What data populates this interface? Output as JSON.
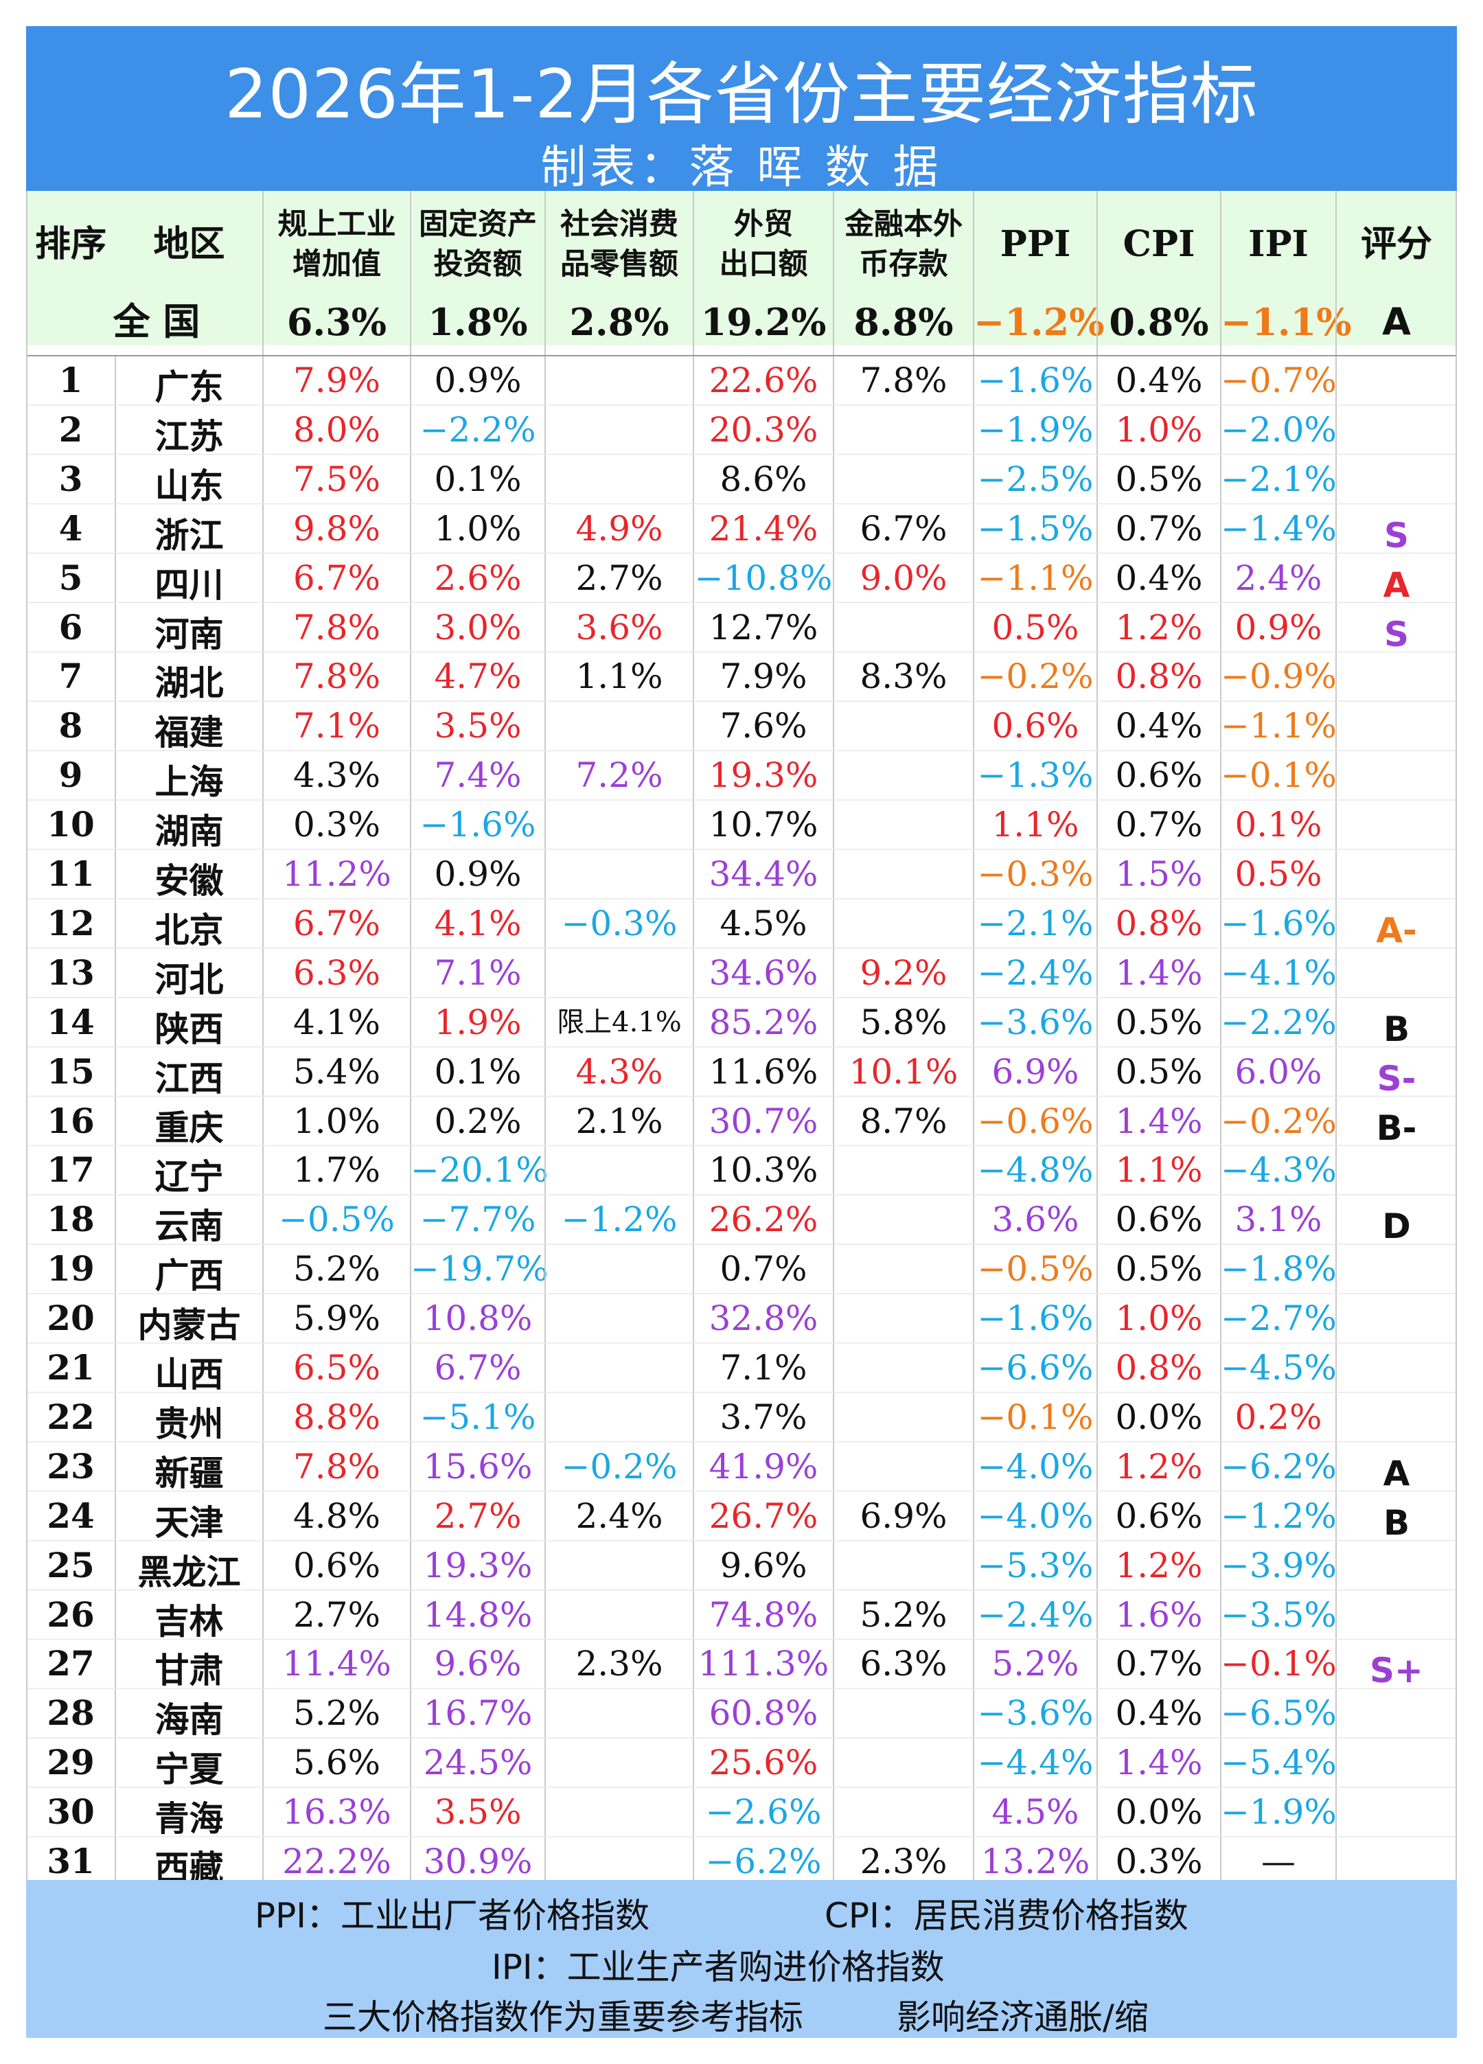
{
  "title": "2026年1-2月各省份主要经济指标",
  "subtitle": "制表：落 晖 数 据",
  "headers": [
    "排序",
    "地区",
    "规上工业\n增加值",
    "固定资产\n投资额",
    "社会消费\n品零售额",
    "外贸\n出口额",
    "金融本外\n币存款",
    "PPI",
    "CPI",
    "IPI",
    "评分"
  ],
  "national": {
    "label": "全 国",
    "values": [
      "6.3%",
      "1.8%",
      "2.8%",
      "19.2%",
      "8.8%",
      "-1.2%",
      "0.8%",
      "-1.1%",
      "A"
    ]
  },
  "colors": {
    "red": "#e8262b",
    "purple": "#9b3fd6",
    "cyan": "#1aa7e4",
    "orange": "#ef7a1a",
    "black": "#111111",
    "header_bg": "#e6fbe3",
    "title_bg": "#3d8fe8",
    "footer_bg": "#a4cdf8"
  },
  "chart_data": {
    "type": "table",
    "columns": [
      "排序",
      "地区",
      "规上工业增加值",
      "固定资产投资额",
      "社会消费品零售额",
      "外贸出口额",
      "金融本外币存款",
      "PPI",
      "CPI",
      "IPI",
      "评分"
    ],
    "rows": [
      [
        "1",
        "广东",
        "7.9%",
        "0.9%",
        "",
        "22.6%",
        "7.8%",
        "-1.6%",
        "0.4%",
        "-0.7%",
        ""
      ],
      [
        "2",
        "江苏",
        "8.0%",
        "-2.2%",
        "",
        "20.3%",
        "",
        "-1.9%",
        "1.0%",
        "-2.0%",
        ""
      ],
      [
        "3",
        "山东",
        "7.5%",
        "0.1%",
        "",
        "8.6%",
        "",
        "-2.5%",
        "0.5%",
        "-2.1%",
        ""
      ],
      [
        "4",
        "浙江",
        "9.8%",
        "1.0%",
        "4.9%",
        "21.4%",
        "6.7%",
        "-1.5%",
        "0.7%",
        "-1.4%",
        "S"
      ],
      [
        "5",
        "四川",
        "6.7%",
        "2.6%",
        "2.7%",
        "-10.8%",
        "9.0%",
        "-1.1%",
        "0.4%",
        "2.4%",
        "A"
      ],
      [
        "6",
        "河南",
        "7.8%",
        "3.0%",
        "3.6%",
        "12.7%",
        "",
        "0.5%",
        "1.2%",
        "0.9%",
        "S"
      ],
      [
        "7",
        "湖北",
        "7.8%",
        "4.7%",
        "1.1%",
        "7.9%",
        "8.3%",
        "-0.2%",
        "0.8%",
        "-0.9%",
        ""
      ],
      [
        "8",
        "福建",
        "7.1%",
        "3.5%",
        "",
        "7.6%",
        "",
        "0.6%",
        "0.4%",
        "-1.1%",
        ""
      ],
      [
        "9",
        "上海",
        "4.3%",
        "7.4%",
        "7.2%",
        "19.3%",
        "",
        "-1.3%",
        "0.6%",
        "-0.1%",
        ""
      ],
      [
        "10",
        "湖南",
        "0.3%",
        "-1.6%",
        "",
        "10.7%",
        "",
        "1.1%",
        "0.7%",
        "0.1%",
        ""
      ],
      [
        "11",
        "安徽",
        "11.2%",
        "0.9%",
        "",
        "34.4%",
        "",
        "-0.3%",
        "1.5%",
        "0.5%",
        ""
      ],
      [
        "12",
        "北京",
        "6.7%",
        "4.1%",
        "-0.3%",
        "4.5%",
        "",
        "-2.1%",
        "0.8%",
        "-1.6%",
        "A-"
      ],
      [
        "13",
        "河北",
        "6.3%",
        "7.1%",
        "",
        "34.6%",
        "9.2%",
        "-2.4%",
        "1.4%",
        "-4.1%",
        ""
      ],
      [
        "14",
        "陕西",
        "4.1%",
        "1.9%",
        "限上4.1%",
        "85.2%",
        "5.8%",
        "-3.6%",
        "0.5%",
        "-2.2%",
        "B"
      ],
      [
        "15",
        "江西",
        "5.4%",
        "0.1%",
        "4.3%",
        "11.6%",
        "10.1%",
        "6.9%",
        "0.5%",
        "6.0%",
        "S-"
      ],
      [
        "16",
        "重庆",
        "1.0%",
        "0.2%",
        "2.1%",
        "30.7%",
        "8.7%",
        "-0.6%",
        "1.4%",
        "-0.2%",
        "B-"
      ],
      [
        "17",
        "辽宁",
        "1.7%",
        "-20.1%",
        "",
        "10.3%",
        "",
        "-4.8%",
        "1.1%",
        "-4.3%",
        ""
      ],
      [
        "18",
        "云南",
        "-0.5%",
        "-7.7%",
        "-1.2%",
        "26.2%",
        "",
        "3.6%",
        "0.6%",
        "3.1%",
        "D"
      ],
      [
        "19",
        "广西",
        "5.2%",
        "-19.7%",
        "",
        "0.7%",
        "",
        "-0.5%",
        "0.5%",
        "-1.8%",
        ""
      ],
      [
        "20",
        "内蒙古",
        "5.9%",
        "10.8%",
        "",
        "32.8%",
        "",
        "-1.6%",
        "1.0%",
        "-2.7%",
        ""
      ],
      [
        "21",
        "山西",
        "6.5%",
        "6.7%",
        "",
        "7.1%",
        "",
        "-6.6%",
        "0.8%",
        "-4.5%",
        ""
      ],
      [
        "22",
        "贵州",
        "8.8%",
        "-5.1%",
        "",
        "3.7%",
        "",
        "-0.1%",
        "0.0%",
        "0.2%",
        ""
      ],
      [
        "23",
        "新疆",
        "7.8%",
        "15.6%",
        "-0.2%",
        "41.9%",
        "",
        "-4.0%",
        "1.2%",
        "-6.2%",
        "A"
      ],
      [
        "24",
        "天津",
        "4.8%",
        "2.7%",
        "2.4%",
        "26.7%",
        "6.9%",
        "-4.0%",
        "0.6%",
        "-1.2%",
        "B"
      ],
      [
        "25",
        "黑龙江",
        "0.6%",
        "19.3%",
        "",
        "9.6%",
        "",
        "-5.3%",
        "1.2%",
        "-3.9%",
        ""
      ],
      [
        "26",
        "吉林",
        "2.7%",
        "14.8%",
        "",
        "74.8%",
        "5.2%",
        "-2.4%",
        "1.6%",
        "-3.5%",
        ""
      ],
      [
        "27",
        "甘肃",
        "11.4%",
        "9.6%",
        "2.3%",
        "111.3%",
        "6.3%",
        "5.2%",
        "0.7%",
        "-0.1%",
        "S+"
      ],
      [
        "28",
        "海南",
        "5.2%",
        "16.7%",
        "",
        "60.8%",
        "",
        "-3.6%",
        "0.4%",
        "-6.5%",
        ""
      ],
      [
        "29",
        "宁夏",
        "5.6%",
        "24.5%",
        "",
        "25.6%",
        "",
        "-4.4%",
        "1.4%",
        "-5.4%",
        ""
      ],
      [
        "30",
        "青海",
        "16.3%",
        "3.5%",
        "",
        "-2.6%",
        "",
        "4.5%",
        "0.0%",
        "-1.9%",
        ""
      ],
      [
        "31",
        "西藏",
        "22.2%",
        "30.9%",
        "",
        "-6.2%",
        "2.3%",
        "13.2%",
        "0.3%",
        "—",
        ""
      ]
    ],
    "cell_colors": [
      [
        "k",
        "k",
        "r",
        "k",
        "",
        "r",
        "k",
        "c",
        "k",
        "o",
        "k"
      ],
      [
        "k",
        "k",
        "r",
        "c",
        "",
        "r",
        "",
        "c",
        "r",
        "c",
        ""
      ],
      [
        "k",
        "k",
        "r",
        "k",
        "",
        "k",
        "",
        "c",
        "k",
        "c",
        ""
      ],
      [
        "k",
        "k",
        "r",
        "k",
        "r",
        "r",
        "k",
        "c",
        "k",
        "c",
        "p"
      ],
      [
        "k",
        "k",
        "r",
        "r",
        "k",
        "c",
        "r",
        "o",
        "k",
        "p",
        "r"
      ],
      [
        "k",
        "k",
        "r",
        "r",
        "r",
        "k",
        "",
        "r",
        "r",
        "r",
        "p"
      ],
      [
        "k",
        "k",
        "r",
        "r",
        "k",
        "k",
        "k",
        "o",
        "r",
        "o",
        ""
      ],
      [
        "k",
        "k",
        "r",
        "r",
        "",
        "k",
        "",
        "r",
        "k",
        "o",
        ""
      ],
      [
        "k",
        "k",
        "k",
        "p",
        "p",
        "r",
        "",
        "c",
        "k",
        "o",
        ""
      ],
      [
        "k",
        "k",
        "k",
        "c",
        "",
        "k",
        "",
        "r",
        "k",
        "r",
        ""
      ],
      [
        "k",
        "k",
        "p",
        "k",
        "",
        "p",
        "",
        "o",
        "p",
        "r",
        ""
      ],
      [
        "k",
        "k",
        "r",
        "r",
        "c",
        "k",
        "",
        "c",
        "r",
        "c",
        "o"
      ],
      [
        "k",
        "k",
        "r",
        "p",
        "",
        "p",
        "r",
        "c",
        "p",
        "c",
        ""
      ],
      [
        "k",
        "k",
        "k",
        "r",
        "k",
        "p",
        "k",
        "c",
        "k",
        "c",
        "k"
      ],
      [
        "k",
        "k",
        "k",
        "k",
        "r",
        "k",
        "r",
        "p",
        "k",
        "p",
        "p"
      ],
      [
        "k",
        "k",
        "k",
        "k",
        "k",
        "p",
        "k",
        "o",
        "p",
        "o",
        "k"
      ],
      [
        "k",
        "k",
        "k",
        "c",
        "",
        "k",
        "",
        "c",
        "r",
        "c",
        ""
      ],
      [
        "k",
        "k",
        "c",
        "c",
        "c",
        "r",
        "",
        "p",
        "k",
        "p",
        "k"
      ],
      [
        "k",
        "k",
        "k",
        "c",
        "",
        "k",
        "",
        "o",
        "k",
        "c",
        ""
      ],
      [
        "k",
        "k",
        "k",
        "p",
        "",
        "p",
        "",
        "c",
        "r",
        "c",
        ""
      ],
      [
        "k",
        "k",
        "r",
        "p",
        "",
        "k",
        "",
        "c",
        "r",
        "c",
        ""
      ],
      [
        "k",
        "k",
        "r",
        "c",
        "",
        "k",
        "",
        "o",
        "k",
        "r",
        ""
      ],
      [
        "k",
        "k",
        "r",
        "p",
        "c",
        "p",
        "",
        "c",
        "r",
        "c",
        "k"
      ],
      [
        "k",
        "k",
        "k",
        "r",
        "k",
        "r",
        "k",
        "c",
        "k",
        "c",
        "k"
      ],
      [
        "k",
        "k",
        "k",
        "p",
        "",
        "k",
        "",
        "c",
        "r",
        "c",
        ""
      ],
      [
        "k",
        "k",
        "k",
        "p",
        "",
        "p",
        "k",
        "c",
        "p",
        "c",
        ""
      ],
      [
        "k",
        "k",
        "p",
        "p",
        "k",
        "p",
        "k",
        "p",
        "k",
        "r",
        "p"
      ],
      [
        "k",
        "k",
        "k",
        "p",
        "",
        "p",
        "",
        "c",
        "k",
        "c",
        ""
      ],
      [
        "k",
        "k",
        "k",
        "p",
        "",
        "r",
        "",
        "c",
        "p",
        "c",
        ""
      ],
      [
        "k",
        "k",
        "p",
        "r",
        "",
        "c",
        "",
        "p",
        "k",
        "c",
        ""
      ],
      [
        "k",
        "k",
        "p",
        "p",
        "",
        "c",
        "k",
        "p",
        "k",
        "k",
        ""
      ]
    ]
  },
  "footer": {
    "line1_left": "PPI：工业出厂者价格指数",
    "line1_right": "CPI：居民消费价格指数",
    "line2": "IPI：工业生产者购进价格指数",
    "line3_left": "三大价格指数作为重要参考指标",
    "line3_right": "影响经济通胀/缩"
  }
}
